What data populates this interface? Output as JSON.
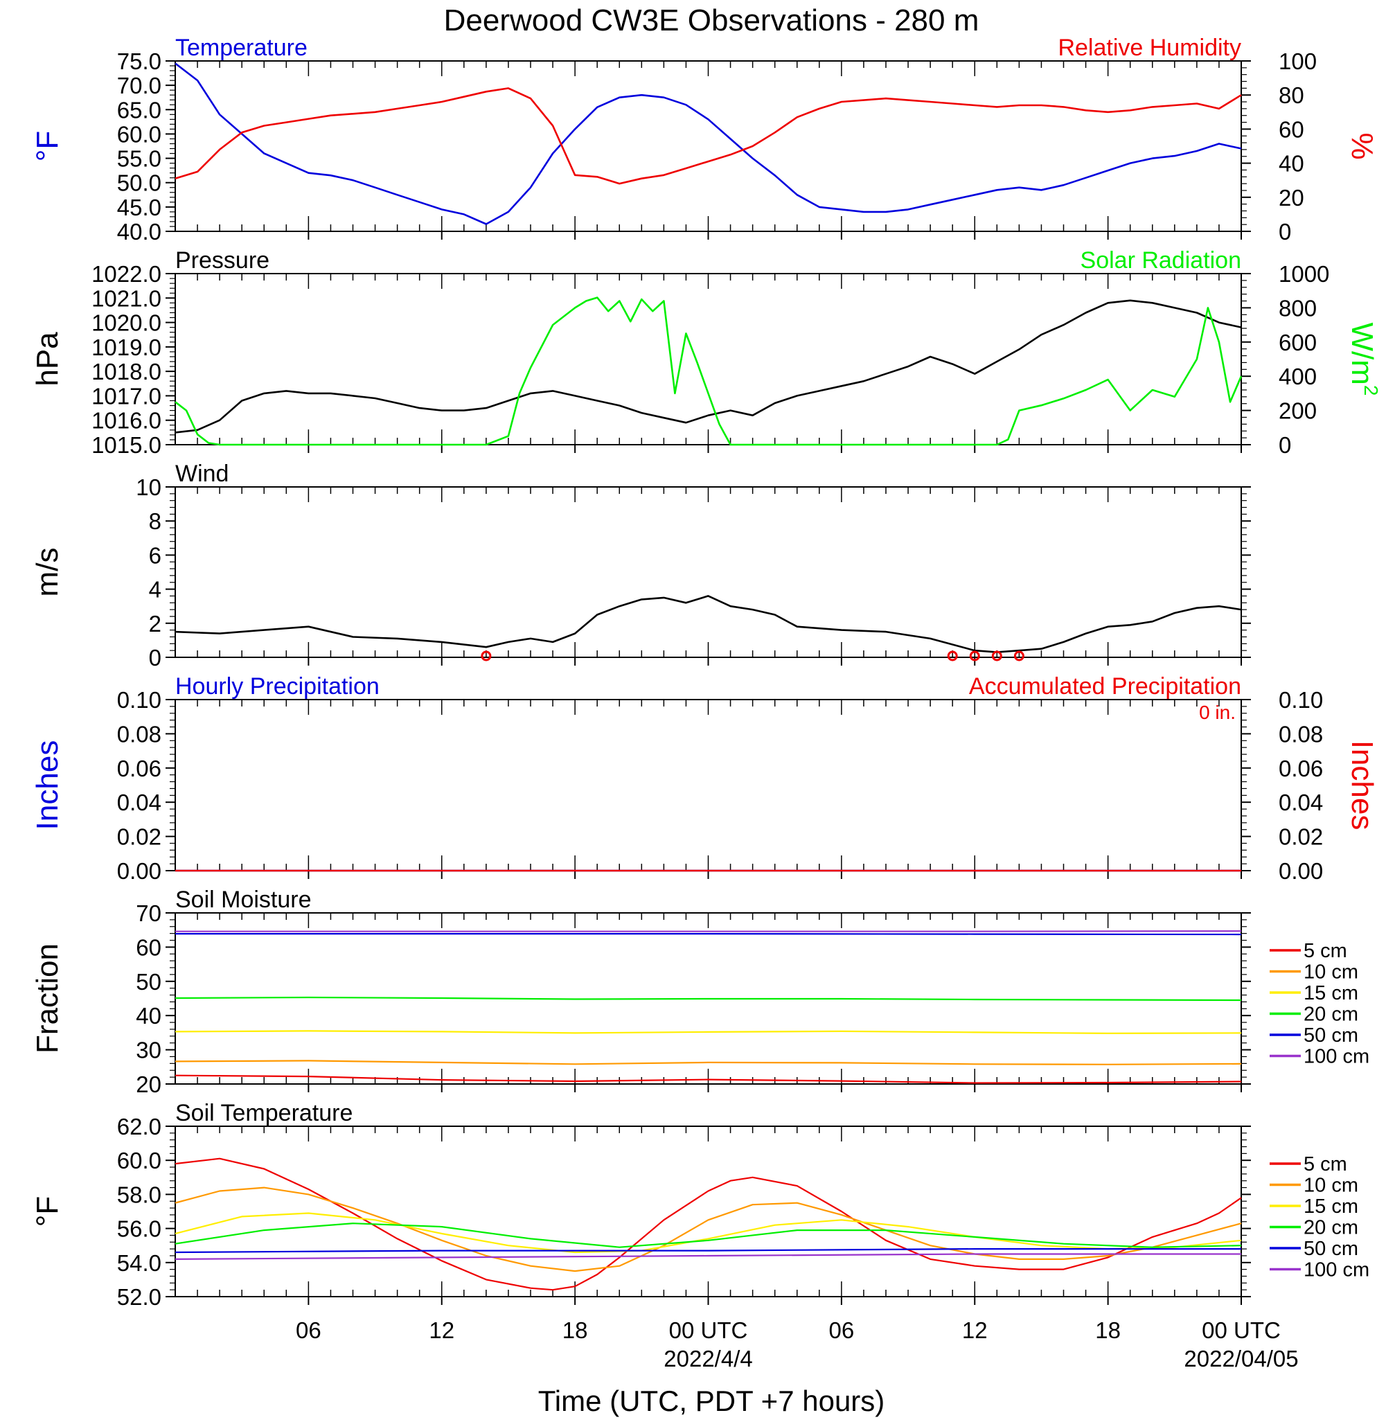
{
  "title": "Deerwood CW3E Observations - 280 m",
  "x_axis": {
    "label": "Time (UTC, PDT +7 hours)",
    "range_hours": [
      0,
      48
    ],
    "ticks": [
      {
        "hour": 6,
        "label": "06",
        "date": ""
      },
      {
        "hour": 12,
        "label": "12",
        "date": ""
      },
      {
        "hour": 18,
        "label": "18",
        "date": ""
      },
      {
        "hour": 24,
        "label": "00 UTC",
        "date": "2022/4/4"
      },
      {
        "hour": 30,
        "label": "06",
        "date": ""
      },
      {
        "hour": 36,
        "label": "12",
        "date": ""
      },
      {
        "hour": 42,
        "label": "18",
        "date": ""
      },
      {
        "hour": 48,
        "label": "00 UTC",
        "date": "2022/04/05"
      }
    ]
  },
  "colors": {
    "red": "#ee0000",
    "blue": "#0000dd",
    "green": "#00ee00",
    "black": "#000000",
    "orange": "#ff9900",
    "yellow": "#ffee00",
    "purple": "#9933cc"
  },
  "chart_data": [
    {
      "type": "line",
      "left_label": "Temperature",
      "right_label": "Relative Humidity",
      "left_unit": "°F",
      "right_unit": "%",
      "left_ylim": [
        40,
        75
      ],
      "left_ticks": [
        "40.0",
        "45.0",
        "50.0",
        "55.0",
        "60.0",
        "65.0",
        "70.0",
        "75.0"
      ],
      "right_ylim": [
        0,
        100
      ],
      "right_ticks": [
        "0",
        "20",
        "40",
        "60",
        "80",
        "100"
      ],
      "series": [
        {
          "name": "Temperature",
          "axis": "left",
          "color": "#0000dd",
          "x": [
            0,
            1,
            2,
            3,
            4,
            5,
            6,
            7,
            8,
            9,
            10,
            11,
            12,
            13,
            14,
            15,
            16,
            17,
            18,
            19,
            20,
            21,
            22,
            23,
            24,
            25,
            26,
            27,
            28,
            29,
            30,
            31,
            32,
            33,
            34,
            35,
            36,
            37,
            38,
            39,
            40,
            41,
            42,
            43,
            44,
            45,
            46,
            47,
            48
          ],
          "y": [
            74.5,
            71,
            64,
            60,
            56,
            54,
            52,
            51.5,
            50.5,
            49,
            47.5,
            46,
            44.5,
            43.5,
            41.5,
            44,
            49,
            56,
            61,
            65.5,
            67.5,
            68,
            67.5,
            66,
            63,
            59,
            55,
            51.5,
            47.5,
            45,
            44.5,
            44,
            44,
            44.5,
            45.5,
            46.5,
            47.5,
            48.5,
            49,
            48.5,
            49.5,
            51,
            52.5,
            54,
            55,
            55.5,
            56.5,
            58,
            57
          ]
        },
        {
          "name": "Relative Humidity",
          "axis": "right",
          "color": "#ee0000",
          "x": [
            0,
            1,
            2,
            3,
            4,
            5,
            6,
            7,
            8,
            9,
            10,
            11,
            12,
            13,
            14,
            15,
            16,
            17,
            18,
            19,
            20,
            21,
            22,
            23,
            24,
            25,
            26,
            27,
            28,
            29,
            30,
            31,
            32,
            33,
            34,
            35,
            36,
            37,
            38,
            39,
            40,
            41,
            42,
            43,
            44,
            45,
            46,
            47,
            48
          ],
          "y": [
            31,
            35,
            48,
            58,
            62,
            64,
            66,
            68,
            69,
            70,
            72,
            74,
            76,
            79,
            82,
            84,
            78,
            62,
            33,
            32,
            28,
            31,
            33,
            37,
            41,
            45,
            50,
            58,
            67,
            72,
            76,
            77,
            78,
            77,
            76,
            75,
            74,
            73,
            74,
            74,
            73,
            71,
            70,
            71,
            73,
            74,
            75,
            72,
            80
          ]
        }
      ]
    },
    {
      "type": "line",
      "left_label": "Pressure",
      "right_label": "Solar Radiation",
      "left_unit": "hPa",
      "right_unit": "W/m",
      "right_unit_sup": "2",
      "left_ylim": [
        1015,
        1022
      ],
      "left_ticks": [
        "1015.0",
        "1016.0",
        "1017.0",
        "1018.0",
        "1019.0",
        "1020.0",
        "1021.0",
        "1022.0"
      ],
      "right_ylim": [
        0,
        1000
      ],
      "right_ticks": [
        "0",
        "200",
        "400",
        "600",
        "800",
        "1000"
      ],
      "series": [
        {
          "name": "Pressure",
          "axis": "left",
          "color": "#000000",
          "x": [
            0,
            1,
            2,
            3,
            4,
            5,
            6,
            7,
            8,
            9,
            10,
            11,
            12,
            13,
            14,
            15,
            16,
            17,
            18,
            19,
            20,
            21,
            22,
            23,
            24,
            25,
            26,
            27,
            28,
            29,
            30,
            31,
            32,
            33,
            34,
            35,
            36,
            37,
            38,
            39,
            40,
            41,
            42,
            43,
            44,
            45,
            46,
            47,
            48
          ],
          "y": [
            1015.5,
            1015.6,
            1016.0,
            1016.8,
            1017.1,
            1017.2,
            1017.1,
            1017.1,
            1017.0,
            1016.9,
            1016.7,
            1016.5,
            1016.4,
            1016.4,
            1016.5,
            1016.8,
            1017.1,
            1017.2,
            1017.0,
            1016.8,
            1016.6,
            1016.3,
            1016.1,
            1015.9,
            1016.2,
            1016.4,
            1016.2,
            1016.7,
            1017.0,
            1017.2,
            1017.4,
            1017.6,
            1017.9,
            1018.2,
            1018.6,
            1018.3,
            1017.9,
            1018.4,
            1018.9,
            1019.5,
            1019.9,
            1020.4,
            1020.8,
            1020.9,
            1020.8,
            1020.6,
            1020.4,
            1020.0,
            1019.8
          ]
        },
        {
          "name": "Solar Radiation",
          "axis": "right",
          "color": "#00ee00",
          "x": [
            0,
            0.5,
            1,
            1.5,
            2,
            3,
            4,
            6,
            8,
            10,
            12,
            13,
            14,
            15,
            15.5,
            16,
            17,
            18,
            18.5,
            19,
            19.5,
            20,
            20.5,
            21,
            21.5,
            22,
            22.5,
            23,
            23.5,
            24,
            24.5,
            25,
            26,
            27,
            28,
            30,
            32,
            34,
            36,
            37,
            37.5,
            38,
            39,
            40,
            41,
            42,
            43,
            44,
            45,
            46,
            46.5,
            47,
            47.5,
            48
          ],
          "y": [
            250,
            200,
            60,
            10,
            0,
            0,
            0,
            0,
            0,
            0,
            0,
            0,
            0,
            50,
            300,
            450,
            700,
            800,
            840,
            860,
            780,
            840,
            720,
            850,
            780,
            840,
            300,
            650,
            480,
            300,
            120,
            0,
            0,
            0,
            0,
            0,
            0,
            0,
            0,
            0,
            30,
            200,
            230,
            270,
            320,
            380,
            200,
            320,
            280,
            500,
            800,
            600,
            250,
            400
          ]
        }
      ]
    },
    {
      "type": "line",
      "left_label": "Wind",
      "left_unit": "m/s",
      "left_ylim": [
        0,
        10
      ],
      "left_ticks": [
        "0",
        "2",
        "4",
        "6",
        "8",
        "10"
      ],
      "series": [
        {
          "name": "Wind",
          "axis": "left",
          "color": "#000000",
          "x": [
            0,
            2,
            4,
            6,
            8,
            10,
            12,
            14,
            15,
            16,
            17,
            18,
            19,
            20,
            21,
            22,
            23,
            24,
            25,
            26,
            27,
            28,
            30,
            32,
            34,
            36,
            37,
            38,
            39,
            40,
            41,
            42,
            43,
            44,
            45,
            46,
            47,
            48
          ],
          "y": [
            1.5,
            1.4,
            1.6,
            1.8,
            1.2,
            1.1,
            0.9,
            0.6,
            0.9,
            1.1,
            0.9,
            1.4,
            2.5,
            3.0,
            3.4,
            3.5,
            3.2,
            3.6,
            3.0,
            2.8,
            2.5,
            1.8,
            1.6,
            1.5,
            1.1,
            0.4,
            0.3,
            0.4,
            0.5,
            0.9,
            1.4,
            1.8,
            1.9,
            2.1,
            2.6,
            2.9,
            3.0,
            2.8
          ]
        }
      ],
      "calm_marks_hours": [
        14,
        35,
        36,
        37,
        38
      ]
    },
    {
      "type": "line",
      "left_label": "Hourly Precipitation",
      "right_label": "Accumulated Precipitation",
      "left_unit": "Inches",
      "right_unit": "Inches",
      "annotation": "0 in.",
      "left_ylim": [
        0,
        0.1
      ],
      "left_ticks": [
        "0.00",
        "0.02",
        "0.04",
        "0.06",
        "0.08",
        "0.10"
      ],
      "right_ticks": [
        "0.00",
        "0.02",
        "0.04",
        "0.06",
        "0.08",
        "0.10"
      ],
      "series": [
        {
          "name": "Hourly Precipitation",
          "axis": "left",
          "color": "#0000dd",
          "x": [
            0,
            48
          ],
          "y": [
            0,
            0
          ]
        },
        {
          "name": "Accumulated Precipitation",
          "axis": "left",
          "color": "#ee0000",
          "x": [
            0,
            48
          ],
          "y": [
            0,
            0
          ]
        }
      ]
    },
    {
      "type": "line",
      "left_label": "Soil Moisture",
      "left_unit": "Fraction",
      "left_ylim": [
        20,
        70
      ],
      "left_ticks": [
        "20",
        "30",
        "40",
        "50",
        "60",
        "70"
      ],
      "legend_position": "right",
      "series": [
        {
          "name": "5 cm",
          "color": "#ee0000",
          "x": [
            0,
            6,
            12,
            18,
            24,
            30,
            36,
            42,
            48
          ],
          "y": [
            22.5,
            22.2,
            21.2,
            20.8,
            21.3,
            20.9,
            20.3,
            20.4,
            20.7
          ]
        },
        {
          "name": "10 cm",
          "color": "#ff9900",
          "x": [
            0,
            6,
            12,
            18,
            24,
            30,
            36,
            42,
            48
          ],
          "y": [
            26.6,
            26.8,
            26.3,
            25.8,
            26.3,
            26.2,
            25.8,
            25.7,
            25.9
          ]
        },
        {
          "name": "15 cm",
          "color": "#ffee00",
          "x": [
            0,
            6,
            12,
            18,
            24,
            30,
            36,
            42,
            48
          ],
          "y": [
            35.3,
            35.5,
            35.3,
            34.9,
            35.2,
            35.4,
            35.1,
            34.8,
            34.9
          ]
        },
        {
          "name": "20 cm",
          "color": "#00ee00",
          "x": [
            0,
            6,
            12,
            18,
            24,
            30,
            36,
            42,
            48
          ],
          "y": [
            45.1,
            45.3,
            45.1,
            44.8,
            44.9,
            44.9,
            44.7,
            44.6,
            44.5
          ]
        },
        {
          "name": "50 cm",
          "color": "#0000dd",
          "x": [
            0,
            12,
            24,
            36,
            48
          ],
          "y": [
            63.9,
            63.9,
            63.9,
            63.8,
            63.7
          ]
        },
        {
          "name": "100 cm",
          "color": "#9933cc",
          "x": [
            0,
            12,
            24,
            36,
            48
          ],
          "y": [
            64.6,
            64.6,
            64.6,
            64.6,
            64.7
          ]
        }
      ]
    },
    {
      "type": "line",
      "left_label": "Soil Temperature",
      "left_unit": "°F",
      "left_ylim": [
        52,
        62
      ],
      "left_ticks": [
        "52.0",
        "54.0",
        "56.0",
        "58.0",
        "60.0",
        "62.0"
      ],
      "legend_position": "right",
      "series": [
        {
          "name": "5 cm",
          "color": "#ee0000",
          "x": [
            0,
            2,
            4,
            6,
            8,
            10,
            12,
            14,
            16,
            17,
            18,
            19,
            20,
            22,
            24,
            25,
            26,
            28,
            30,
            32,
            34,
            36,
            38,
            40,
            42,
            44,
            46,
            47,
            48
          ],
          "y": [
            59.8,
            60.1,
            59.5,
            58.3,
            56.9,
            55.4,
            54.1,
            53.0,
            52.5,
            52.4,
            52.6,
            53.3,
            54.3,
            56.5,
            58.2,
            58.8,
            59.0,
            58.5,
            57.0,
            55.3,
            54.2,
            53.8,
            53.6,
            53.6,
            54.3,
            55.5,
            56.3,
            56.9,
            57.8
          ]
        },
        {
          "name": "10 cm",
          "color": "#ff9900",
          "x": [
            0,
            2,
            4,
            6,
            8,
            10,
            12,
            14,
            16,
            18,
            20,
            22,
            24,
            26,
            28,
            30,
            32,
            34,
            36,
            38,
            40,
            42,
            44,
            46,
            48
          ],
          "y": [
            57.5,
            58.2,
            58.4,
            58.0,
            57.2,
            56.3,
            55.3,
            54.4,
            53.8,
            53.5,
            53.8,
            55.0,
            56.5,
            57.4,
            57.5,
            56.8,
            55.9,
            55.0,
            54.5,
            54.2,
            54.2,
            54.4,
            54.9,
            55.6,
            56.3
          ]
        },
        {
          "name": "15 cm",
          "color": "#ffee00",
          "x": [
            0,
            3,
            6,
            9,
            12,
            15,
            18,
            21,
            24,
            27,
            30,
            33,
            36,
            39,
            42,
            45,
            48
          ],
          "y": [
            55.7,
            56.7,
            56.9,
            56.5,
            55.7,
            55.0,
            54.6,
            54.7,
            55.4,
            56.2,
            56.5,
            56.1,
            55.5,
            55.0,
            54.8,
            54.9,
            55.3
          ]
        },
        {
          "name": "20 cm",
          "color": "#00ee00",
          "x": [
            0,
            4,
            8,
            12,
            16,
            20,
            24,
            28,
            32,
            36,
            40,
            44,
            48
          ],
          "y": [
            55.1,
            55.9,
            56.3,
            56.1,
            55.4,
            54.9,
            55.3,
            55.9,
            55.9,
            55.5,
            55.1,
            54.9,
            55.0
          ]
        },
        {
          "name": "50 cm",
          "color": "#0000dd",
          "x": [
            0,
            12,
            24,
            36,
            48
          ],
          "y": [
            54.6,
            54.7,
            54.7,
            54.8,
            54.8
          ]
        },
        {
          "name": "100 cm",
          "color": "#9933cc",
          "x": [
            0,
            12,
            24,
            36,
            48
          ],
          "y": [
            54.2,
            54.3,
            54.4,
            54.5,
            54.5
          ]
        }
      ]
    }
  ]
}
